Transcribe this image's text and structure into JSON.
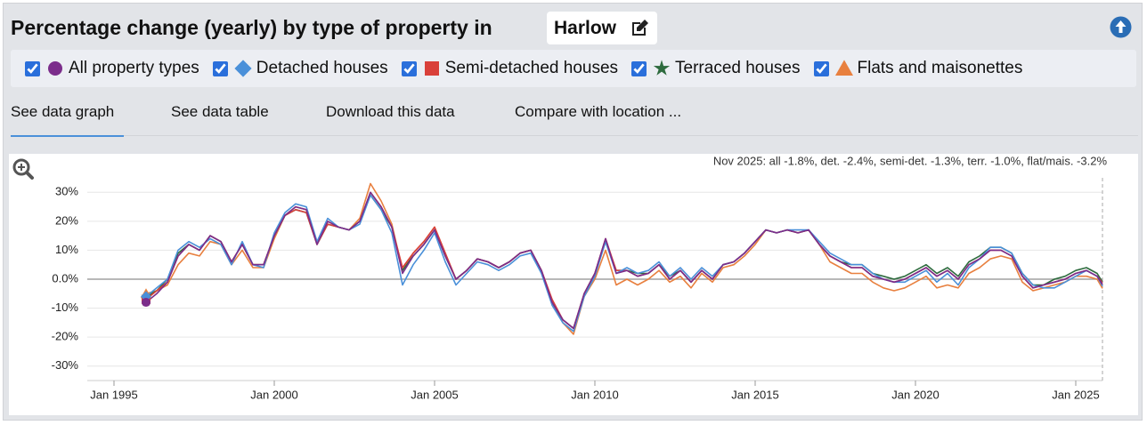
{
  "header": {
    "title": "Percentage change (yearly) by type of property in",
    "location": "Harlow"
  },
  "tabs": [
    "See data graph",
    "See data table",
    "Download this data",
    "Compare with location ..."
  ],
  "chart_data": {
    "type": "line",
    "annotation": "Nov 2025: all -1.8%, det. -2.4%, semi-det. -1.3%, terr. -1.0%, flat/mais. -3.2%",
    "x": [
      "1996-01",
      "1996-05",
      "1996-09",
      "1997-01",
      "1997-05",
      "1997-09",
      "1998-01",
      "1998-05",
      "1998-09",
      "1999-01",
      "1999-05",
      "1999-09",
      "2000-01",
      "2000-05",
      "2000-09",
      "2001-01",
      "2001-05",
      "2001-09",
      "2002-01",
      "2002-05",
      "2002-09",
      "2003-01",
      "2003-05",
      "2003-09",
      "2004-01",
      "2004-05",
      "2004-09",
      "2005-01",
      "2005-05",
      "2005-09",
      "2006-01",
      "2006-05",
      "2006-09",
      "2007-01",
      "2007-05",
      "2007-09",
      "2008-01",
      "2008-05",
      "2008-09",
      "2009-01",
      "2009-05",
      "2009-09",
      "2010-01",
      "2010-05",
      "2010-09",
      "2011-01",
      "2011-05",
      "2011-09",
      "2012-01",
      "2012-05",
      "2012-09",
      "2013-01",
      "2013-05",
      "2013-09",
      "2014-01",
      "2014-05",
      "2014-09",
      "2015-01",
      "2015-05",
      "2015-09",
      "2016-01",
      "2016-05",
      "2016-09",
      "2017-01",
      "2017-05",
      "2017-09",
      "2018-01",
      "2018-05",
      "2018-09",
      "2019-01",
      "2019-05",
      "2019-09",
      "2020-01",
      "2020-05",
      "2020-09",
      "2021-01",
      "2021-05",
      "2021-09",
      "2022-01",
      "2022-05",
      "2022-09",
      "2023-01",
      "2023-05",
      "2023-09",
      "2024-01",
      "2024-05",
      "2024-09",
      "2025-01",
      "2025-05",
      "2025-09",
      "2025-11"
    ],
    "series": [
      {
        "name": "All property types",
        "color": "#7b2d8b",
        "marker": "circle",
        "values": [
          -8,
          -5,
          -1,
          8,
          12,
          10,
          15,
          13,
          6,
          12,
          5,
          5,
          15,
          22,
          25,
          24,
          12,
          20,
          18,
          17,
          20,
          30,
          25,
          18,
          2,
          8,
          12,
          17,
          8,
          0,
          3,
          7,
          6,
          4,
          6,
          9,
          10,
          3,
          -8,
          -14,
          -17,
          -5,
          2,
          14,
          2,
          3,
          1,
          2,
          5,
          0,
          3,
          -1,
          3,
          0,
          5,
          6,
          9,
          13,
          17,
          16,
          17,
          16,
          17,
          12,
          8,
          6,
          4,
          4,
          1,
          0,
          -1,
          0,
          2,
          4,
          1,
          3,
          0,
          5,
          7,
          10,
          10,
          8,
          1,
          -3,
          -2,
          -1,
          0,
          2,
          3,
          1,
          -1.8
        ]
      },
      {
        "name": "Detached houses",
        "color": "#4a90d9",
        "marker": "diamond",
        "values": [
          -6,
          -3,
          0,
          10,
          13,
          11,
          14,
          12,
          5,
          13,
          5,
          4,
          16,
          23,
          26,
          25,
          13,
          21,
          18,
          17,
          19,
          29,
          24,
          16,
          -2,
          5,
          10,
          16,
          6,
          -2,
          2,
          6,
          5,
          3,
          5,
          8,
          9,
          2,
          -9,
          -15,
          -18,
          -6,
          1,
          13,
          2,
          4,
          2,
          3,
          6,
          1,
          4,
          0,
          4,
          1,
          5,
          6,
          9,
          13,
          17,
          16,
          17,
          17,
          17,
          13,
          9,
          7,
          5,
          5,
          2,
          0,
          -1,
          -1,
          1,
          3,
          -1,
          2,
          -2,
          4,
          7,
          11,
          11,
          9,
          2,
          -2,
          -3,
          -3,
          -1,
          1,
          3,
          1,
          -2.4
        ]
      },
      {
        "name": "Semi-detached houses",
        "color": "#d9403a",
        "marker": "square",
        "values": [
          -7,
          -4,
          -1,
          8,
          12,
          10,
          15,
          13,
          6,
          12,
          5,
          5,
          15,
          22,
          24,
          23,
          12,
          19,
          18,
          17,
          20,
          30,
          25,
          18,
          4,
          9,
          13,
          18,
          9,
          0,
          3,
          7,
          6,
          4,
          6,
          9,
          10,
          3,
          -7,
          -14,
          -17,
          -5,
          2,
          14,
          3,
          3,
          1,
          2,
          5,
          0,
          3,
          -1,
          3,
          0,
          5,
          6,
          9,
          13,
          17,
          16,
          17,
          16,
          17,
          12,
          8,
          6,
          4,
          4,
          1,
          0,
          -1,
          0,
          2,
          4,
          1,
          3,
          0,
          5,
          7,
          10,
          10,
          8,
          1,
          -3,
          -2,
          -1,
          0,
          2,
          3,
          1,
          -1.3
        ]
      },
      {
        "name": "Terraced houses",
        "color": "#2e6b3e",
        "marker": "star",
        "values": [
          -6,
          -4,
          0,
          9,
          12,
          10,
          15,
          13,
          6,
          12,
          5,
          5,
          15,
          22,
          24,
          23,
          12,
          19,
          18,
          17,
          20,
          29,
          24,
          18,
          3,
          8,
          12,
          17,
          8,
          0,
          3,
          7,
          6,
          4,
          6,
          9,
          10,
          3,
          -8,
          -14,
          -17,
          -5,
          2,
          13,
          3,
          3,
          2,
          2,
          5,
          1,
          3,
          -1,
          3,
          0,
          5,
          6,
          9,
          13,
          17,
          16,
          17,
          16,
          17,
          12,
          8,
          6,
          5,
          5,
          2,
          1,
          0,
          1,
          3,
          5,
          2,
          4,
          1,
          6,
          8,
          11,
          11,
          9,
          2,
          -2,
          -2,
          0,
          1,
          3,
          4,
          2,
          -1.0
        ]
      },
      {
        "name": "Flats and maisonettes",
        "color": "#e8803f",
        "marker": "triangle",
        "values": [
          -5,
          -4,
          -2,
          5,
          9,
          8,
          13,
          12,
          5,
          10,
          4,
          4,
          14,
          22,
          25,
          24,
          12,
          20,
          18,
          17,
          21,
          33,
          27,
          19,
          3,
          9,
          13,
          18,
          9,
          0,
          3,
          7,
          6,
          4,
          6,
          9,
          10,
          3,
          -8,
          -15,
          -19,
          -6,
          0,
          10,
          -2,
          0,
          -2,
          0,
          3,
          -1,
          1,
          -3,
          2,
          -1,
          4,
          5,
          8,
          12,
          17,
          16,
          17,
          16,
          17,
          12,
          6,
          4,
          2,
          2,
          -1,
          -3,
          -4,
          -3,
          -1,
          1,
          -3,
          -2,
          -3,
          2,
          4,
          7,
          8,
          7,
          -1,
          -4,
          -3,
          -2,
          -1,
          1,
          1,
          0,
          -3.2
        ]
      }
    ],
    "xlim": [
      "1994-03",
      "2025-11"
    ],
    "xticks": [
      {
        "value": "1995-01",
        "label": "Jan 1995"
      },
      {
        "value": "2000-01",
        "label": "Jan 2000"
      },
      {
        "value": "2005-01",
        "label": "Jan 2005"
      },
      {
        "value": "2010-01",
        "label": "Jan 2010"
      },
      {
        "value": "2015-01",
        "label": "Jan 2015"
      },
      {
        "value": "2020-01",
        "label": "Jan 2020"
      },
      {
        "value": "2025-01",
        "label": "Jan 2025"
      }
    ],
    "ylim": [
      -35,
      35
    ],
    "yticks": [
      {
        "value": -30,
        "label": "-30%"
      },
      {
        "value": -20,
        "label": "-20%"
      },
      {
        "value": -10,
        "label": "-10%"
      },
      {
        "value": 0,
        "label": "0.0%"
      },
      {
        "value": 10,
        "label": "10%"
      },
      {
        "value": 20,
        "label": "20%"
      },
      {
        "value": 30,
        "label": "30%"
      }
    ],
    "grid": true
  }
}
